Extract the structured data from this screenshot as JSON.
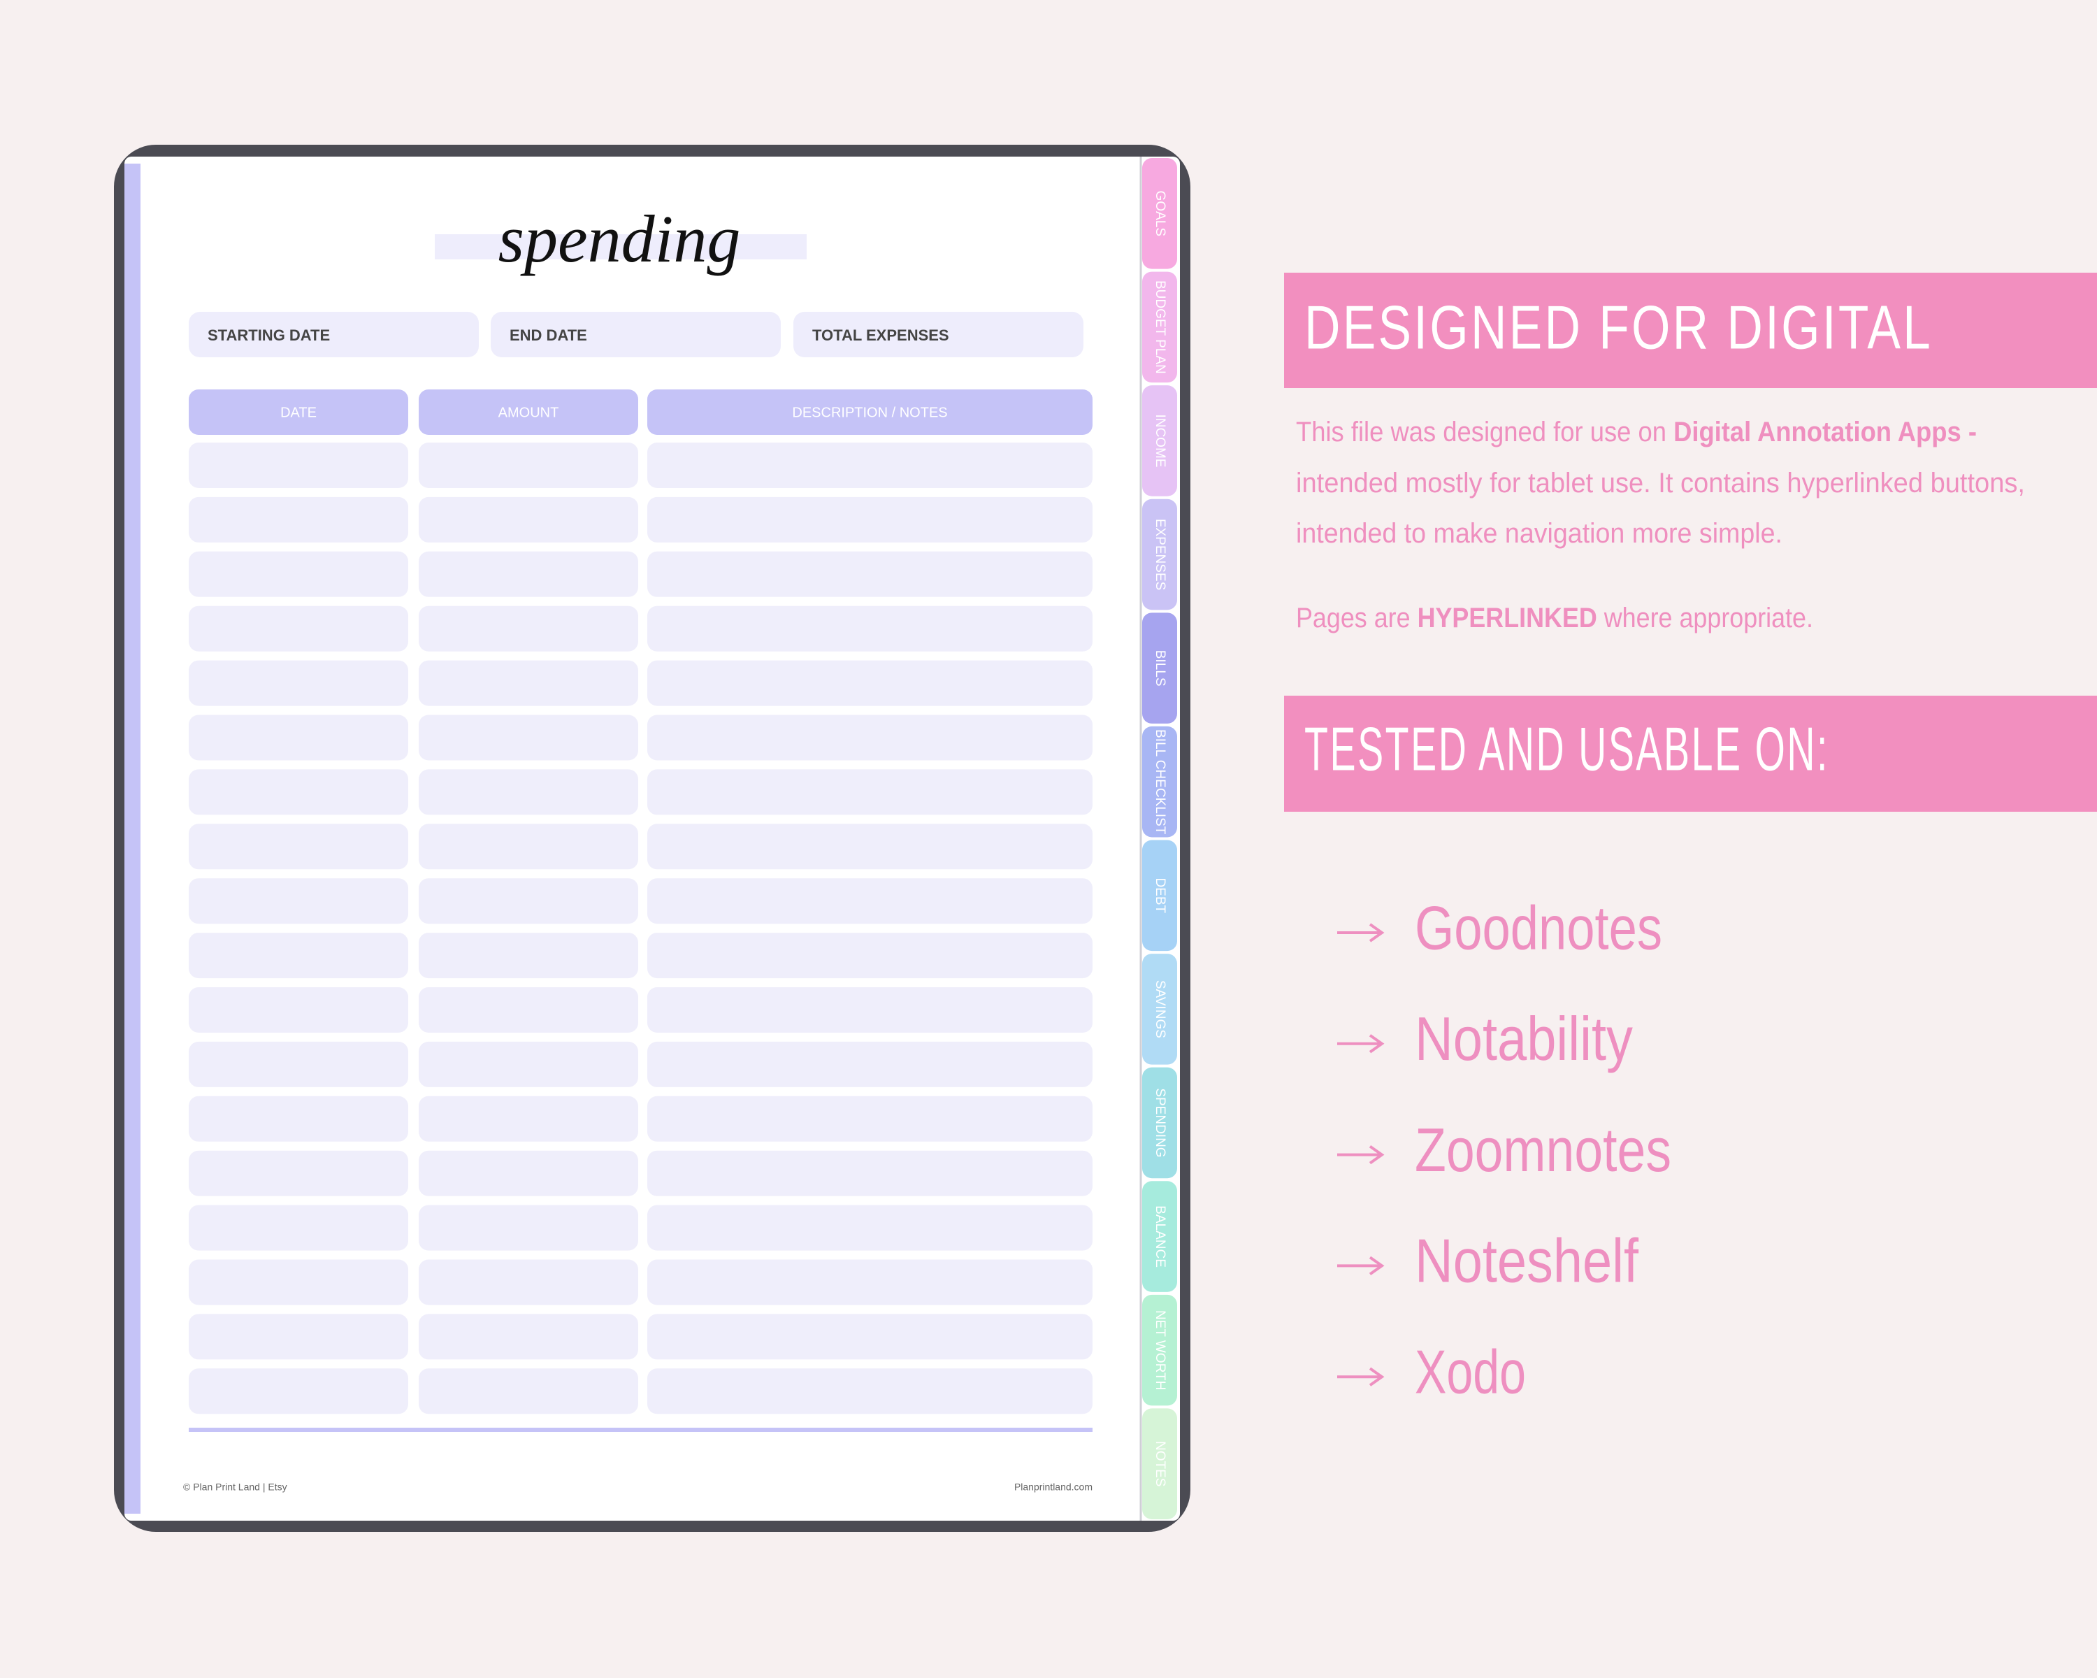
{
  "page": {
    "title": "spending",
    "fields": [
      "STARTING DATE",
      "END DATE",
      "TOTAL EXPENSES"
    ],
    "table_headers": [
      "DATE",
      "AMOUNT",
      "DESCRIPTION / NOTES"
    ],
    "footer_left": "© Plan Print Land | Etsy",
    "footer_right": "Planprintland.com"
  },
  "tabs": [
    "GOALS",
    "BUDGET PLAN",
    "INCOME",
    "EXPENSES",
    "BILLS",
    "BILL CHECKLIST",
    "DEBT",
    "SAVINGS",
    "SPENDING",
    "BALANCE",
    "NET WORTH",
    "NOTES"
  ],
  "panel": {
    "heading": "DESIGNED FOR DIGITAL",
    "paragraph1": [
      [
        {
          "text": "This file was designed for use on ",
          "bold": false
        },
        {
          "text": "Digital Annotation Apps -",
          "bold": true
        }
      ],
      [
        {
          "text": "intended mostly for tablet use. It contains hyperlinked buttons,",
          "bold": false
        }
      ],
      [
        {
          "text": "intended to make navigation more simple.",
          "bold": false
        }
      ]
    ],
    "paragraph2": [
      [
        {
          "text": "Pages are ",
          "bold": false
        },
        {
          "text": "HYPERLINKED",
          "bold": true
        },
        {
          "text": " where appropriate.",
          "bold": false
        }
      ]
    ],
    "heading2": "TESTED AND USABLE ON:",
    "apps": [
      "Goodnotes",
      "Notability",
      "Zoomnotes",
      "Noteshelf",
      "Xodo"
    ]
  }
}
